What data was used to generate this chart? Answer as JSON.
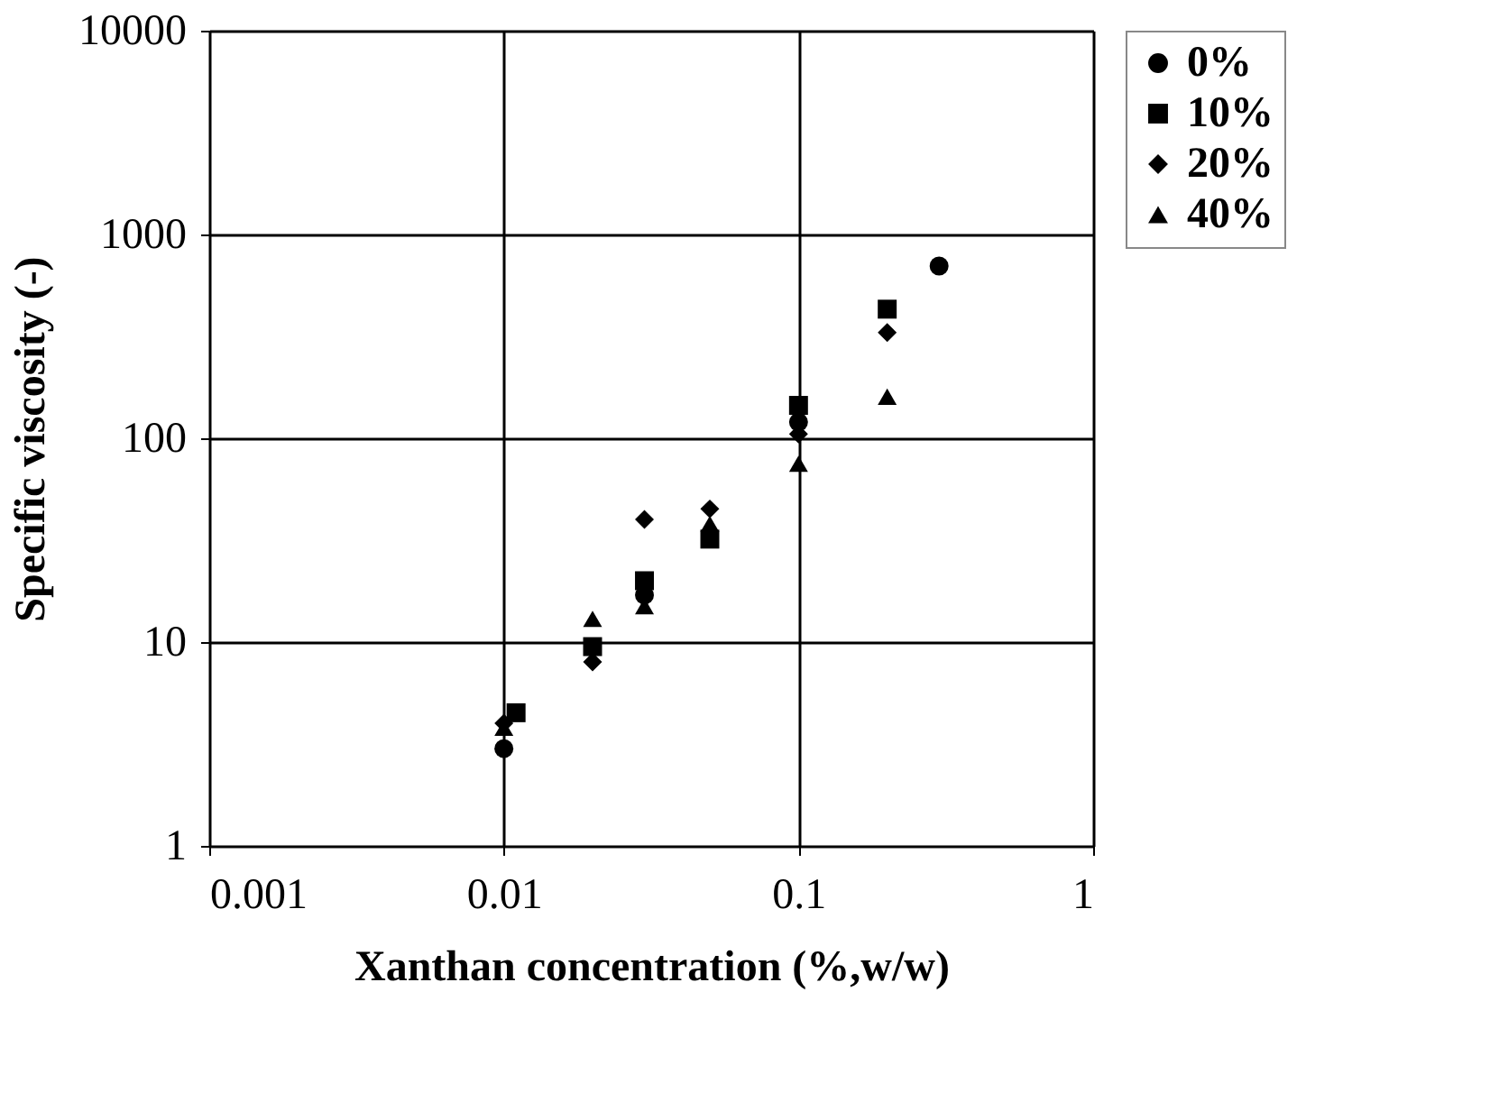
{
  "chart_data": {
    "type": "scatter",
    "xlabel": "Xanthan concentration (%,w/w)",
    "ylabel": "Specific viscosity (-)",
    "log": "xy",
    "xlim": [
      0.001,
      1
    ],
    "ylim": [
      1,
      10000
    ],
    "xticks": [
      0.001,
      0.01,
      0.1,
      1
    ],
    "yticks": [
      1,
      10,
      100,
      1000,
      10000
    ],
    "grid": true,
    "legend": "top right",
    "series": [
      {
        "name": "0%",
        "color": "#000000",
        "marker": "circle",
        "x": [
          0.01,
          0.02,
          0.03,
          0.05,
          0.1,
          0.3
        ],
        "values": [
          3,
          null,
          17,
          null,
          120,
          700
        ]
      },
      {
        "name": "10%",
        "color": "#000000",
        "marker": "square",
        "x": [
          0.011,
          0.02,
          0.03,
          0.05,
          0.1,
          0.2
        ],
        "values": [
          4.5,
          9.5,
          20,
          32,
          145,
          430
        ]
      },
      {
        "name": "20%",
        "color": "#000000",
        "marker": "diamond",
        "x": [
          0.01,
          0.02,
          0.03,
          0.05,
          0.1,
          0.2
        ],
        "values": [
          4,
          8,
          40,
          45,
          105,
          330
        ]
      },
      {
        "name": "40%",
        "color": "#000000",
        "marker": "triangle",
        "x": [
          0.01,
          0.02,
          0.03,
          0.05,
          0.1,
          0.2
        ],
        "values": [
          3.8,
          13,
          15,
          38,
          75,
          160
        ]
      }
    ]
  }
}
